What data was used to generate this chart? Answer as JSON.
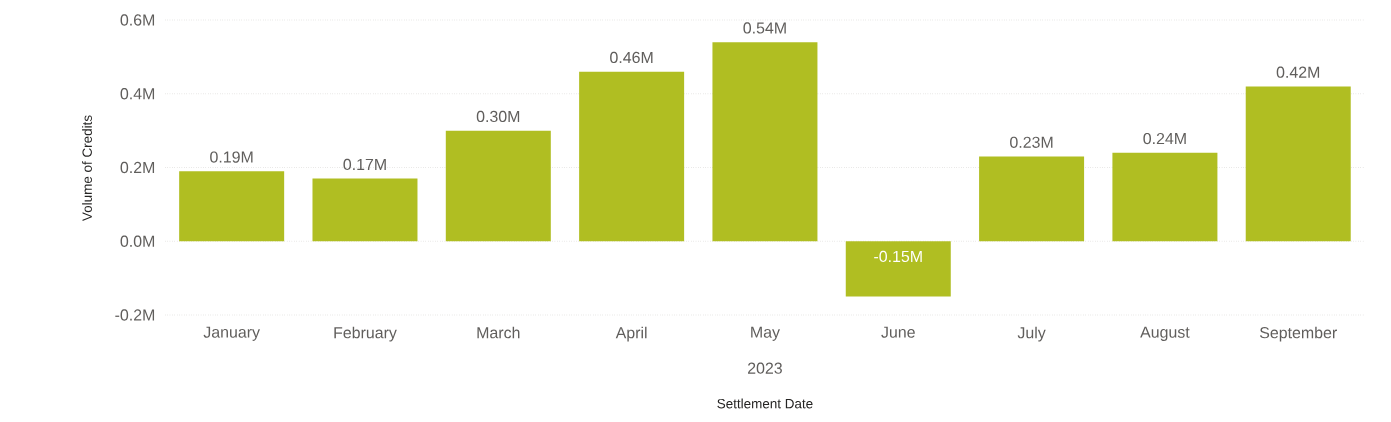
{
  "chart_data": {
    "type": "bar",
    "xlabel": "Settlement Date",
    "ylabel": "Volume of Credits",
    "categories": [
      "January",
      "February",
      "March",
      "April",
      "May",
      "June",
      "July",
      "August",
      "September"
    ],
    "values": [
      0.19,
      0.17,
      0.3,
      0.46,
      0.54,
      -0.15,
      0.23,
      0.24,
      0.42
    ],
    "value_labels": [
      "0.19M",
      "0.17M",
      "0.30M",
      "0.46M",
      "0.54M",
      "-0.15M",
      "0.23M",
      "0.24M",
      "0.42M"
    ],
    "color": "#b0be22",
    "ylim": [
      -0.2,
      0.6
    ],
    "yticks": [
      {
        "value": -0.2,
        "label": "-0.2M"
      },
      {
        "value": 0.0,
        "label": "0.0M"
      },
      {
        "value": 0.2,
        "label": "0.2M"
      },
      {
        "value": 0.4,
        "label": "0.4M"
      },
      {
        "value": 0.6,
        "label": "0.6M"
      }
    ],
    "grid": "y",
    "annotations": [
      "2023"
    ]
  }
}
